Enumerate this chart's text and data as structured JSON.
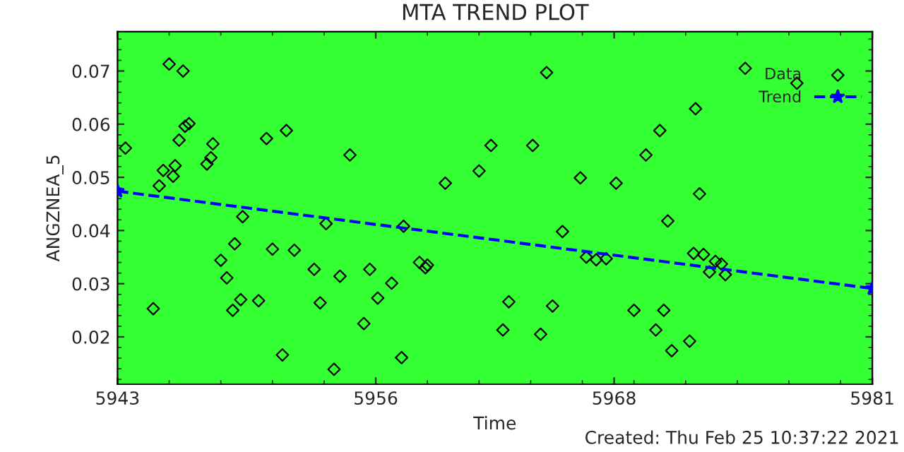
{
  "chart_data": {
    "type": "scatter",
    "title": "MTA TREND PLOT",
    "xlabel": "Time",
    "ylabel": "ANGZNEA_5",
    "annotations": [
      "Created: Thu Feb 25 10:37:22 2021"
    ],
    "xlim": [
      5943,
      5981
    ],
    "xticks": [
      5943,
      5956,
      5968,
      5981
    ],
    "ylim": [
      0.0111,
      0.0774
    ],
    "yticks": [
      0.02,
      0.03,
      0.04,
      0.05,
      0.06,
      0.07
    ],
    "grid": false,
    "legend": "top right",
    "series": [
      {
        "name": "Data",
        "color": "#000000",
        "marker": "diamond",
        "x": [
          5943.4,
          5944.8,
          5945.6,
          5946.3,
          5945.3,
          5945.1,
          5945.8,
          5945.9,
          5946.1,
          5946.4,
          5946.6,
          5947.8,
          5947.7,
          5947.5,
          5949.3,
          5948.9,
          5948.2,
          5948.5,
          5949.2,
          5948.8,
          5950.1,
          5950.5,
          5951.5,
          5950.8,
          5951.9,
          5951.3,
          5952.9,
          5953.2,
          5953.5,
          5954.2,
          5953.9,
          5954.7,
          5955.7,
          5955.4,
          5956.1,
          5956.8,
          5957.3,
          5957.4,
          5958.2,
          5958.6,
          5958.5,
          5959.5,
          5961.2,
          5961.8,
          5962.7,
          5962.4,
          5963.9,
          5964.6,
          5964.9,
          5964.3,
          5965.4,
          5966.3,
          5966.6,
          5967.1,
          5967.6,
          5968.1,
          5969.0,
          5969.6,
          5970.1,
          5970.3,
          5970.5,
          5970.7,
          5970.9,
          5971.8,
          5972.0,
          5972.5,
          5972.3,
          5972.1,
          5973.1,
          5973.4,
          5972.8,
          5973.6,
          5974.6,
          5977.2
        ],
        "values": [
          0.0555,
          0.0253,
          0.0713,
          0.07,
          0.0513,
          0.0484,
          0.0502,
          0.0522,
          0.057,
          0.0596,
          0.0601,
          0.0563,
          0.0537,
          0.0525,
          0.0426,
          0.0375,
          0.0344,
          0.0311,
          0.027,
          0.025,
          0.0268,
          0.0573,
          0.0588,
          0.0365,
          0.0363,
          0.0166,
          0.0327,
          0.0264,
          0.0413,
          0.0314,
          0.0139,
          0.0542,
          0.0327,
          0.0225,
          0.0273,
          0.0301,
          0.0161,
          0.0408,
          0.034,
          0.0335,
          0.033,
          0.0489,
          0.0512,
          0.056,
          0.0266,
          0.0213,
          0.056,
          0.0697,
          0.0258,
          0.0205,
          0.0398,
          0.0499,
          0.035,
          0.0345,
          0.0347,
          0.0489,
          0.025,
          0.0542,
          0.0213,
          0.0588,
          0.025,
          0.0418,
          0.0174,
          0.0192,
          0.0357,
          0.0355,
          0.0469,
          0.0629,
          0.0342,
          0.0337,
          0.0322,
          0.0317,
          0.0705,
          0.0677
        ]
      },
      {
        "name": "Trend",
        "type": "line",
        "color": "#0000ff",
        "marker": "star",
        "line_style": "dashed",
        "x": [
          5943,
          5981
        ],
        "values": [
          0.0474,
          0.0291
        ]
      }
    ]
  }
}
